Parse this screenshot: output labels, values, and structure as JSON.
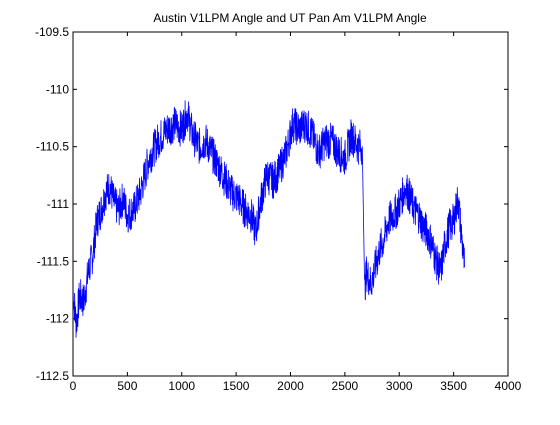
{
  "chart_data": {
    "type": "line",
    "title": "Austin V1LPM Angle and UT Pan Am V1LPM Angle",
    "xlabel": "",
    "ylabel": "",
    "xlim": [
      0,
      4000
    ],
    "ylim": [
      -112.5,
      -109.5
    ],
    "xticks": [
      "0",
      "500",
      "1000",
      "1500",
      "2000",
      "2500",
      "3000",
      "3500",
      "4000"
    ],
    "yticks": [
      "-109.5",
      "-110",
      "-110.5",
      "-111",
      "-111.5",
      "-112",
      "-112.5"
    ],
    "grid": false,
    "series": [
      {
        "color": "#0000ff",
        "x": [
          0,
          30,
          60,
          100,
          140,
          180,
          220,
          260,
          300,
          340,
          380,
          420,
          460,
          500,
          560,
          620,
          700,
          780,
          860,
          940,
          1000,
          1050,
          1100,
          1160,
          1220,
          1300,
          1380,
          1460,
          1520,
          1580,
          1640,
          1680,
          1720,
          1780,
          1840,
          1900,
          1960,
          2020,
          2080,
          2140,
          2200,
          2260,
          2320,
          2380,
          2440,
          2500,
          2560,
          2620,
          2660,
          2680,
          2700,
          2740,
          2780,
          2820,
          2860,
          2900,
          2940,
          2980,
          3020,
          3060,
          3100,
          3140,
          3180,
          3220,
          3260,
          3300,
          3340,
          3380,
          3420,
          3460,
          3500,
          3540,
          3580,
          3600
        ],
        "y": [
          -111.75,
          -112.05,
          -111.8,
          -111.85,
          -111.6,
          -111.45,
          -111.15,
          -111.05,
          -110.9,
          -110.85,
          -111.0,
          -111.05,
          -110.95,
          -111.1,
          -111.05,
          -110.9,
          -110.6,
          -110.45,
          -110.35,
          -110.3,
          -110.35,
          -110.2,
          -110.4,
          -110.5,
          -110.45,
          -110.6,
          -110.75,
          -110.9,
          -110.95,
          -111.05,
          -111.1,
          -111.25,
          -111.0,
          -110.75,
          -110.8,
          -110.7,
          -110.55,
          -110.3,
          -110.35,
          -110.3,
          -110.4,
          -110.55,
          -110.45,
          -110.45,
          -110.55,
          -110.6,
          -110.4,
          -110.5,
          -110.5,
          -111.75,
          -111.6,
          -111.7,
          -111.55,
          -111.4,
          -111.3,
          -111.15,
          -111.1,
          -111.05,
          -110.95,
          -110.85,
          -110.95,
          -111.05,
          -111.1,
          -111.2,
          -111.25,
          -111.35,
          -111.5,
          -111.6,
          -111.35,
          -111.2,
          -111.15,
          -110.95,
          -111.35,
          -111.55
        ]
      }
    ]
  }
}
